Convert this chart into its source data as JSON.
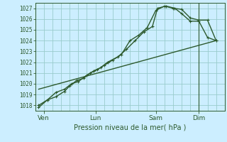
{
  "bg_color": "#cceeff",
  "grid_color": "#99cccc",
  "line_color": "#2d5a2d",
  "text_color": "#2d5a2d",
  "xlabel_text": "Pression niveau de la mer( hPa )",
  "ylim": [
    1017.5,
    1027.5
  ],
  "yticks": [
    1018,
    1019,
    1020,
    1021,
    1022,
    1023,
    1024,
    1025,
    1026,
    1027
  ],
  "xtick_labels": [
    "Ven",
    "Lun",
    "Sam",
    "Dim"
  ],
  "xtick_positions": [
    0.5,
    3.5,
    7.0,
    9.5
  ],
  "xlim": [
    0,
    11
  ],
  "n_vgrid": 22,
  "series1_x": [
    0.2,
    0.7,
    1.2,
    1.7,
    2.0,
    2.4,
    2.8,
    3.2,
    3.6,
    4.0,
    4.5,
    5.0,
    5.5,
    6.0,
    6.5,
    7.0,
    7.5,
    8.0,
    8.5,
    9.0,
    9.5,
    10.0,
    10.5
  ],
  "series1_y": [
    1017.8,
    1018.5,
    1018.8,
    1019.3,
    1019.8,
    1020.3,
    1020.5,
    1021.0,
    1021.3,
    1021.7,
    1022.2,
    1022.7,
    1024.0,
    1024.5,
    1025.2,
    1026.8,
    1027.2,
    1027.0,
    1026.9,
    1026.1,
    1025.9,
    1025.9,
    1024.0
  ],
  "series2_x": [
    0.2,
    0.7,
    1.2,
    1.7,
    2.1,
    2.5,
    3.0,
    3.4,
    3.8,
    4.2,
    4.8,
    5.3,
    5.8,
    6.3,
    6.8,
    7.1,
    7.6,
    8.1,
    8.5,
    9.0,
    9.5,
    10.0,
    10.5
  ],
  "series2_y": [
    1018.0,
    1018.5,
    1019.2,
    1019.5,
    1020.0,
    1020.2,
    1020.8,
    1021.2,
    1021.5,
    1022.0,
    1022.5,
    1023.2,
    1024.0,
    1024.8,
    1025.3,
    1027.0,
    1027.2,
    1027.0,
    1026.5,
    1025.8,
    1025.8,
    1024.3,
    1024.0
  ],
  "trend_x": [
    0.2,
    10.5
  ],
  "trend_y": [
    1019.5,
    1024.0
  ],
  "vline_x": 9.5
}
